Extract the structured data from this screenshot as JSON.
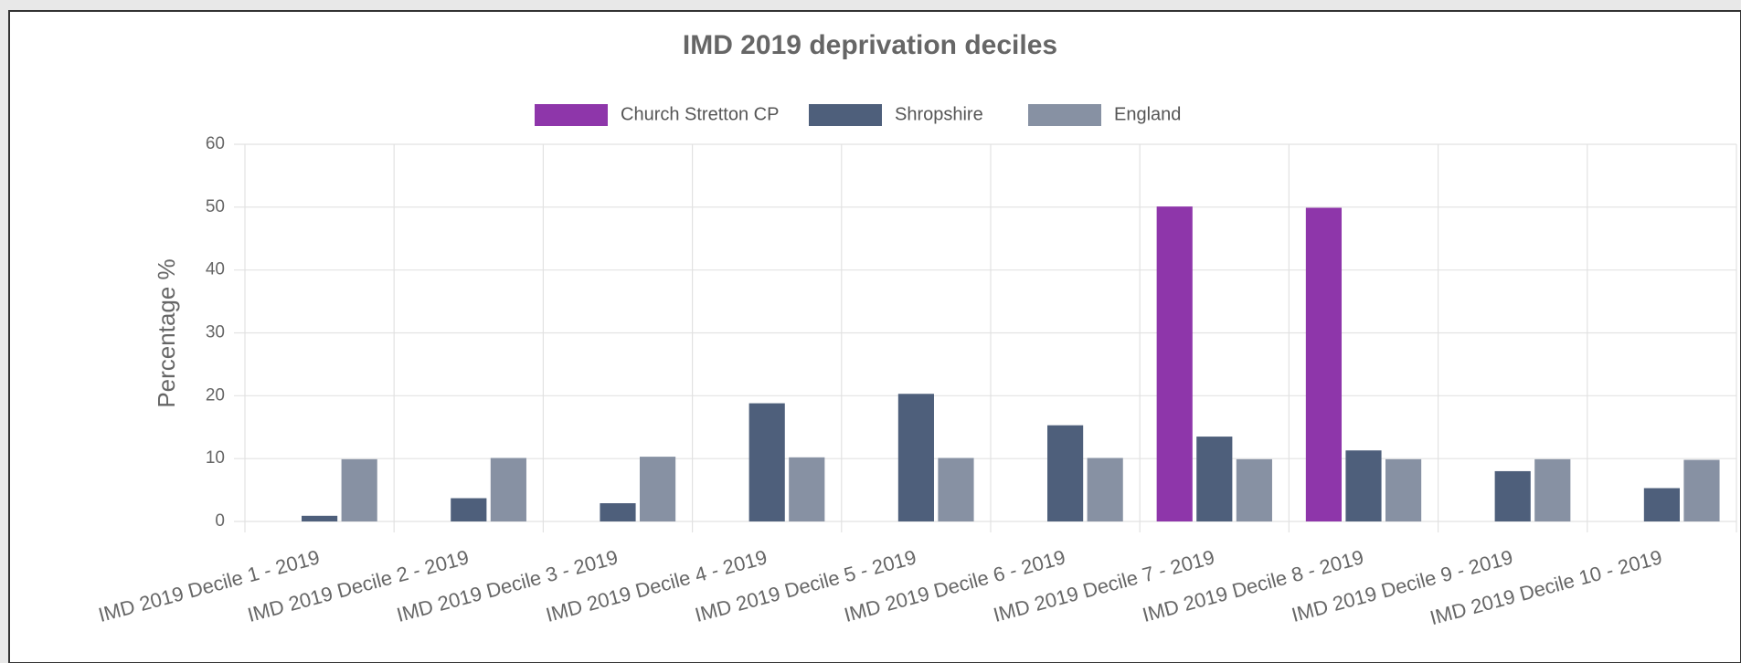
{
  "chart_data": {
    "type": "bar",
    "title": "IMD 2019 deprivation deciles",
    "categories": [
      "IMD 2019 Decile 1 - 2019",
      "IMD 2019 Decile 2 - 2019",
      "IMD 2019 Decile 3 - 2019",
      "IMD 2019 Decile 4 - 2019",
      "IMD 2019 Decile 5 - 2019",
      "IMD 2019 Decile 6 - 2019",
      "IMD 2019 Decile 7 - 2019",
      "IMD 2019 Decile 8 - 2019",
      "IMD 2019 Decile 9 - 2019",
      "IMD 2019 Decile 10 - 2019"
    ],
    "series": [
      {
        "name": "Church Stretton CP",
        "color": "#8e36aa",
        "values": [
          0,
          0,
          0,
          0,
          0,
          0,
          50.1,
          49.9,
          0,
          0
        ]
      },
      {
        "name": "Shropshire",
        "color": "#4e5f7b",
        "values": [
          0.9,
          3.7,
          2.9,
          18.8,
          20.3,
          15.3,
          13.5,
          11.3,
          8.0,
          5.3
        ]
      },
      {
        "name": "England",
        "color": "#8791a3",
        "values": [
          9.9,
          10.1,
          10.3,
          10.2,
          10.1,
          10.1,
          9.9,
          9.9,
          9.9,
          9.8
        ]
      }
    ],
    "y_label": "Percentage %",
    "ylim": [
      0,
      60
    ],
    "yticks": [
      0,
      10,
      20,
      30,
      40,
      50,
      60
    ],
    "grid": true,
    "legend": "top"
  }
}
